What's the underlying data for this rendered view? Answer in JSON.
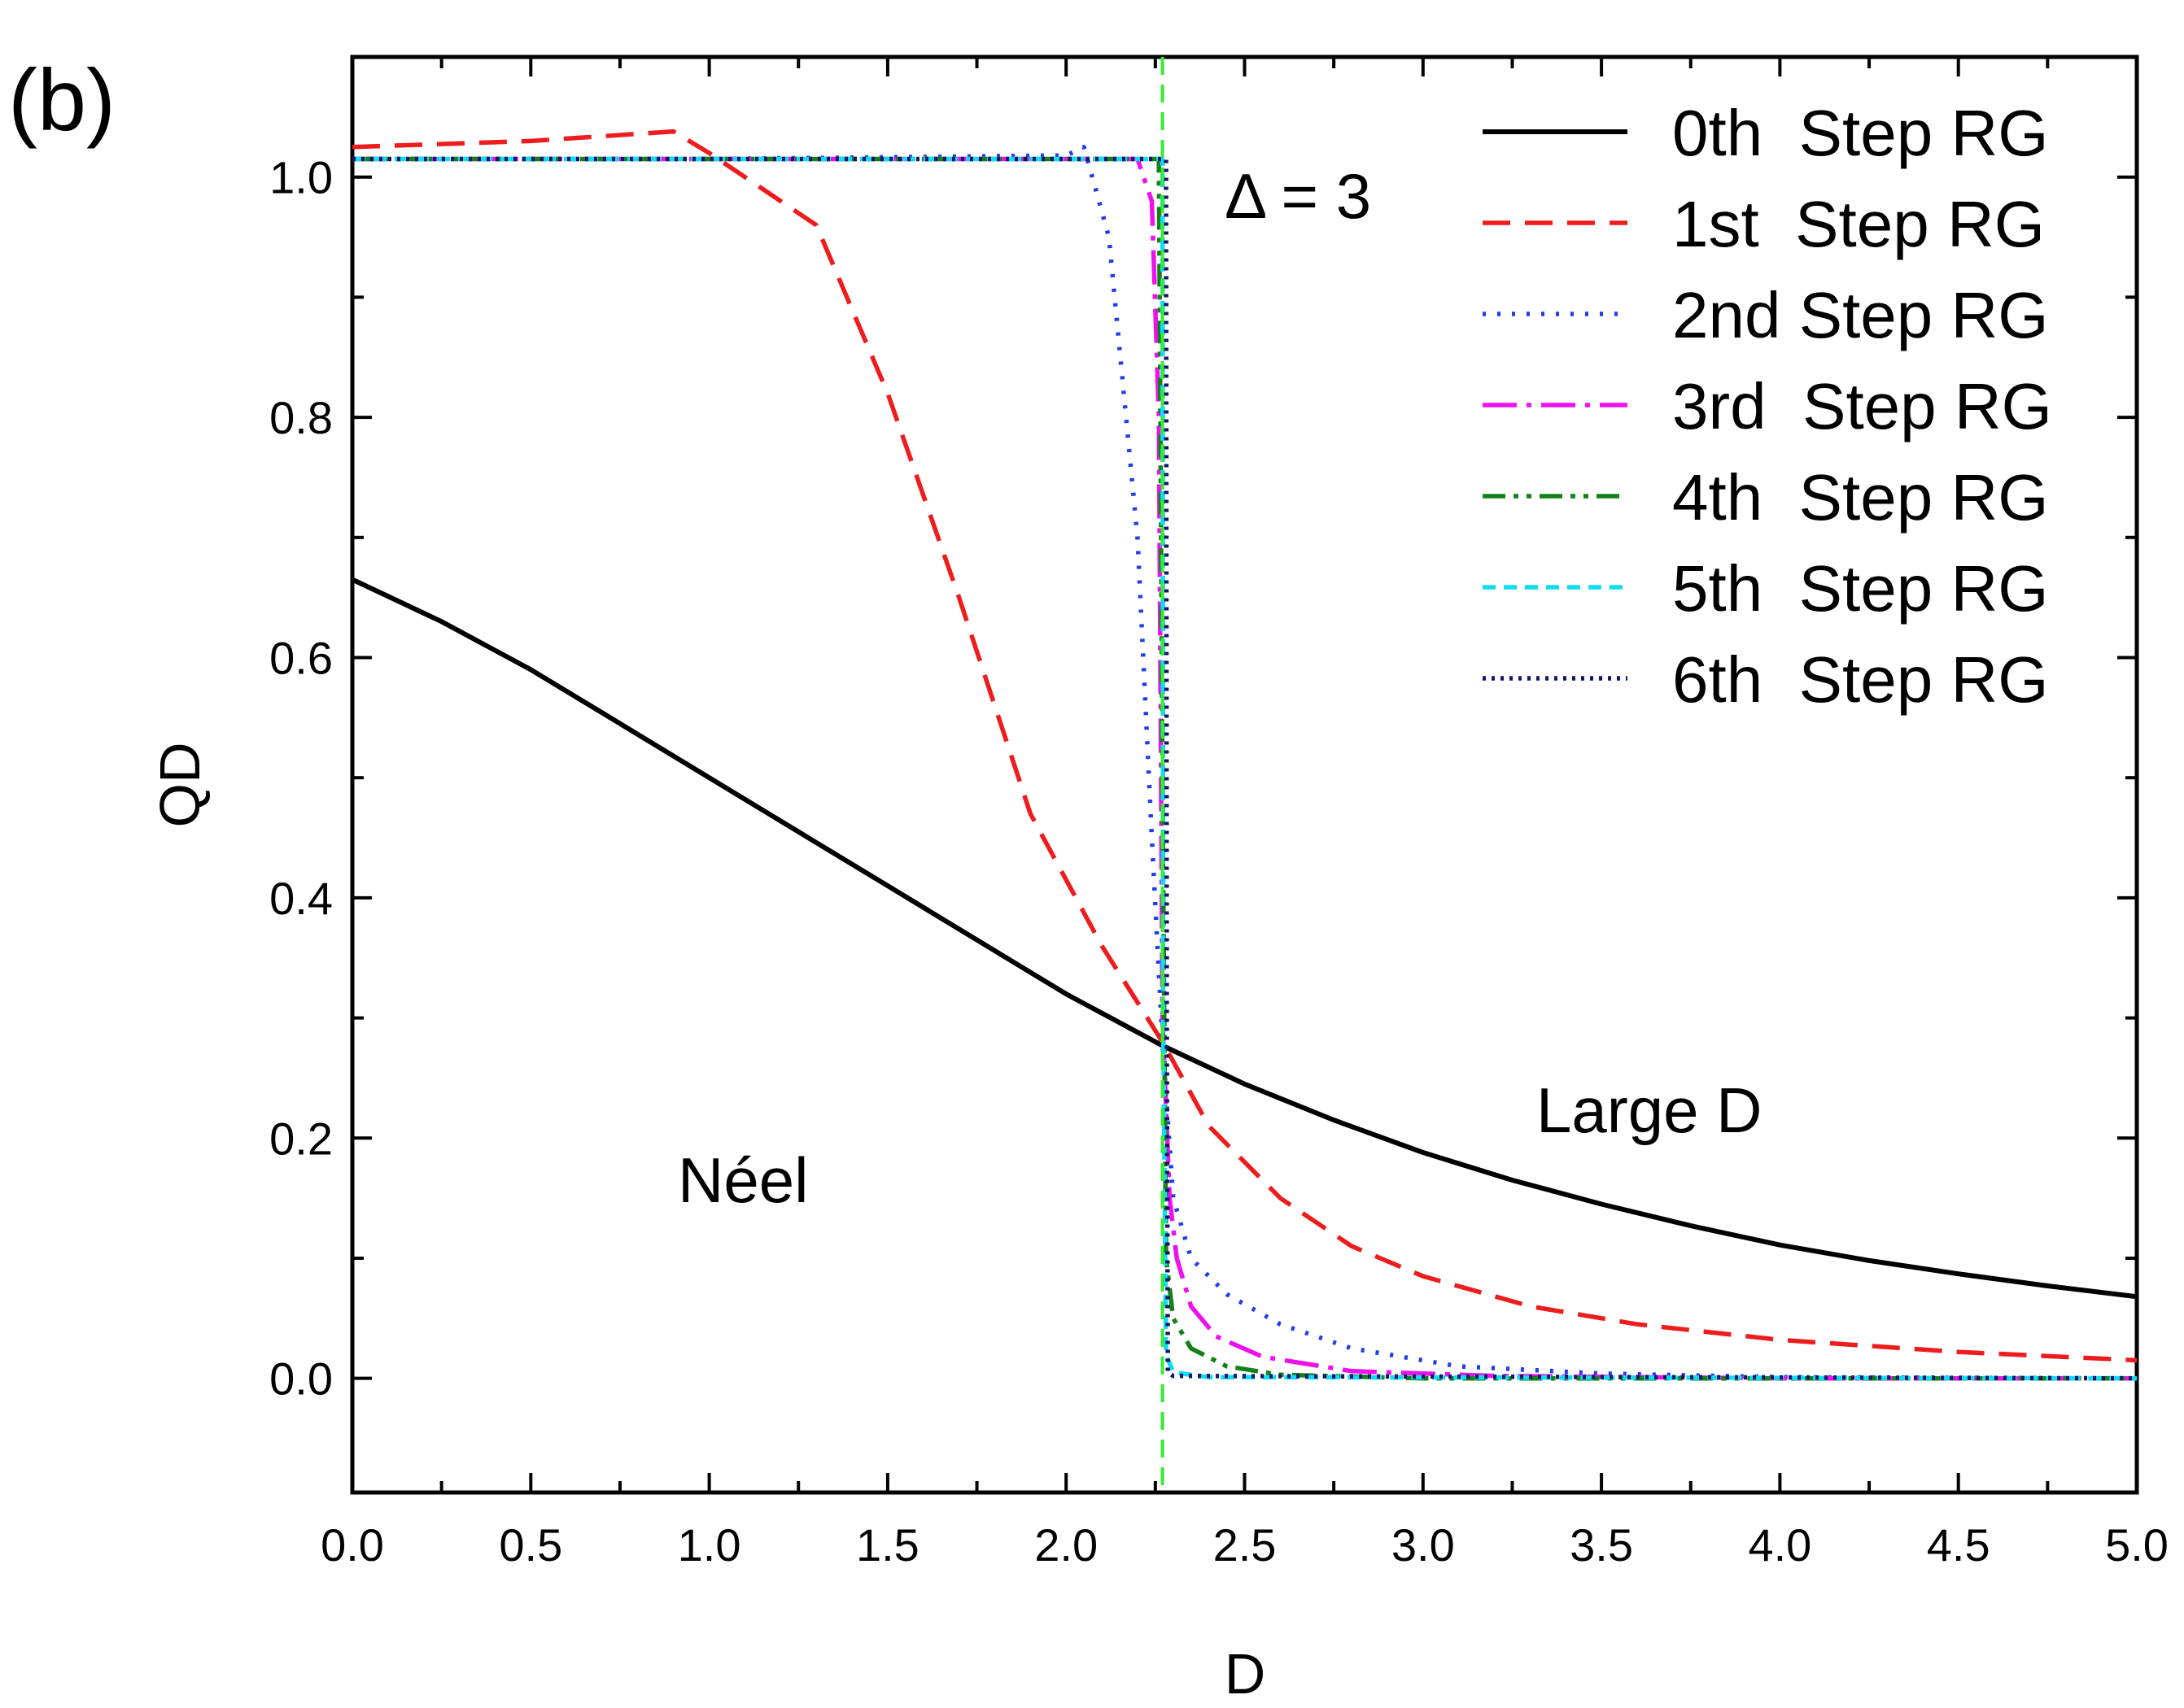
{
  "chart_data": {
    "type": "line",
    "panel_label": "(b)",
    "xlabel": "D",
    "ylabel": "QD",
    "xlim": [
      0,
      5
    ],
    "ylim": [
      -0.095,
      1.1
    ],
    "x_ticks": [
      0,
      0.5,
      1,
      1.5,
      2,
      2.5,
      3,
      3.5,
      4,
      4.5,
      5
    ],
    "x_tick_labels": [
      "0.0",
      "0.5",
      "1.0",
      "1.5",
      "2.0",
      "2.5",
      "3.0",
      "3.5",
      "4.0",
      "4.5",
      "5.0"
    ],
    "y_ticks": [
      0,
      0.2,
      0.4,
      0.6,
      0.8,
      1.0
    ],
    "y_tick_labels": [
      "0.0",
      "0.2",
      "0.4",
      "0.6",
      "0.8",
      "1.0"
    ],
    "grid": false,
    "legend_position": "top-right",
    "critical_line": {
      "x": 2.27,
      "color": "#33ee33",
      "style": "dashed"
    },
    "annotations": [
      {
        "text": "Δ = 3",
        "x": 2.5,
        "y": 0.98
      },
      {
        "text": "Néel",
        "x": 1.13,
        "y": 0.2
      },
      {
        "text": "Large D",
        "x": 3.7,
        "y": 0.25
      }
    ],
    "series": [
      {
        "name": "0th  Step RG",
        "color": "#000000",
        "dash": "",
        "x": [
          0,
          0.25,
          0.5,
          0.75,
          1.0,
          1.25,
          1.5,
          1.75,
          2.0,
          2.27,
          2.5,
          2.75,
          3.0,
          3.25,
          3.5,
          3.75,
          4.0,
          4.25,
          4.5,
          4.75,
          5.0
        ],
        "y": [
          0.665,
          0.63,
          0.59,
          0.545,
          0.5,
          0.455,
          0.41,
          0.365,
          0.32,
          0.277,
          0.245,
          0.215,
          0.188,
          0.165,
          0.145,
          0.127,
          0.111,
          0.098,
          0.087,
          0.077,
          0.068
        ]
      },
      {
        "name": "1st  Step RG",
        "color": "#ee1c1c",
        "dash": "34,18",
        "x": [
          0,
          0.5,
          0.9,
          1.0,
          1.1,
          1.3,
          1.5,
          1.7,
          1.9,
          2.1,
          2.27,
          2.4,
          2.6,
          2.8,
          3.0,
          3.3,
          3.6,
          4.0,
          4.5,
          5.0
        ],
        "y": [
          1.025,
          1.03,
          1.038,
          1.02,
          1.0,
          0.96,
          0.82,
          0.65,
          0.47,
          0.36,
          0.28,
          0.21,
          0.15,
          0.11,
          0.085,
          0.06,
          0.045,
          0.032,
          0.022,
          0.015
        ]
      },
      {
        "name": "2nd Step RG",
        "color": "#1f3de8",
        "dash": "4,14",
        "x": [
          0,
          1.0,
          2.0,
          2.05,
          2.12,
          2.2,
          2.24,
          2.27,
          2.3,
          2.35,
          2.45,
          2.6,
          2.8,
          3.1,
          3.5,
          4.0,
          5.0
        ],
        "y": [
          1.015,
          1.015,
          1.018,
          1.025,
          0.95,
          0.7,
          0.45,
          0.28,
          0.15,
          0.1,
          0.07,
          0.045,
          0.025,
          0.01,
          0.004,
          0.001,
          0.0
        ]
      },
      {
        "name": "3rd  Step RG",
        "color": "#ee11ee",
        "dash": "42,12,6,12",
        "x": [
          0,
          2.2,
          2.24,
          2.26,
          2.27,
          2.29,
          2.31,
          2.35,
          2.42,
          2.55,
          2.8,
          3.2,
          4.0,
          5.0
        ],
        "y": [
          1.015,
          1.015,
          0.98,
          0.8,
          0.3,
          0.15,
          0.1,
          0.06,
          0.035,
          0.018,
          0.006,
          0.002,
          0.0,
          0.0
        ]
      },
      {
        "name": "4th  Step RG",
        "color": "#15801a",
        "dash": "28,10,6,10,6,10",
        "x": [
          0,
          2.26,
          2.27,
          2.28,
          2.3,
          2.35,
          2.45,
          2.6,
          3.0,
          5.0
        ],
        "y": [
          1.015,
          1.015,
          0.5,
          0.1,
          0.05,
          0.025,
          0.01,
          0.003,
          0.0,
          0.0
        ]
      },
      {
        "name": "5th  Step RG",
        "color": "#11ddee",
        "dash": "16,10",
        "x": [
          0,
          2.27,
          2.272,
          2.28,
          2.3,
          2.4,
          5.0
        ],
        "y": [
          1.015,
          1.015,
          0.3,
          0.02,
          0.005,
          0.001,
          0.0
        ]
      },
      {
        "name": "6th  Step RG",
        "color": "#14146e",
        "dash": "4,7",
        "x": [
          0,
          2.28,
          2.282,
          2.285,
          2.3,
          5.0
        ],
        "y": [
          1.015,
          1.015,
          0.3,
          0.005,
          0.002,
          0.0
        ]
      }
    ]
  }
}
